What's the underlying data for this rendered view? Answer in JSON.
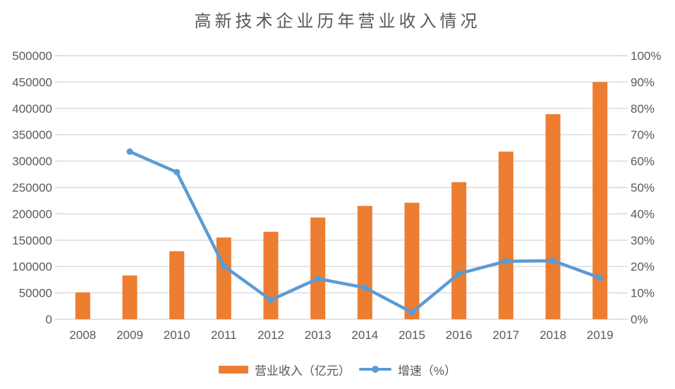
{
  "colors": {
    "bar": "#ED7D31",
    "line": "#5B9BD5",
    "grid": "#D9D9D9",
    "axis_text": "#595959",
    "title_text": "#595959",
    "background": "#FFFFFF"
  },
  "chart_data": {
    "type": "bar+line combo",
    "title": "高新技术企业历年营业收入情况",
    "categories": [
      "2008",
      "2009",
      "2010",
      "2011",
      "2012",
      "2013",
      "2014",
      "2015",
      "2016",
      "2017",
      "2018",
      "2019"
    ],
    "series": [
      {
        "name": "营业收入（亿元）",
        "type": "bar",
        "axis": "left",
        "color": "#ED7D31",
        "values": [
          51000,
          83000,
          129000,
          155000,
          166000,
          193000,
          215000,
          221000,
          260000,
          318000,
          389000,
          450000
        ]
      },
      {
        "name": "增速（%）",
        "type": "line",
        "axis": "right",
        "color": "#5B9BD5",
        "values": [
          null,
          63.6,
          55.8,
          20.2,
          7.3,
          15.4,
          12.0,
          2.6,
          17.3,
          22.0,
          22.2,
          15.7
        ]
      }
    ],
    "left_axis": {
      "min": 0,
      "max": 500000,
      "step": 50000,
      "tick_labels": [
        "0",
        "50000",
        "100000",
        "150000",
        "200000",
        "250000",
        "300000",
        "350000",
        "400000",
        "450000",
        "500000"
      ]
    },
    "right_axis": {
      "min": 0,
      "max": 100,
      "step": 10,
      "tick_labels": [
        "0%",
        "10%",
        "20%",
        "30%",
        "40%",
        "50%",
        "60%",
        "70%",
        "80%",
        "90%",
        "100%"
      ]
    },
    "grid": true,
    "legend_position": "bottom"
  }
}
